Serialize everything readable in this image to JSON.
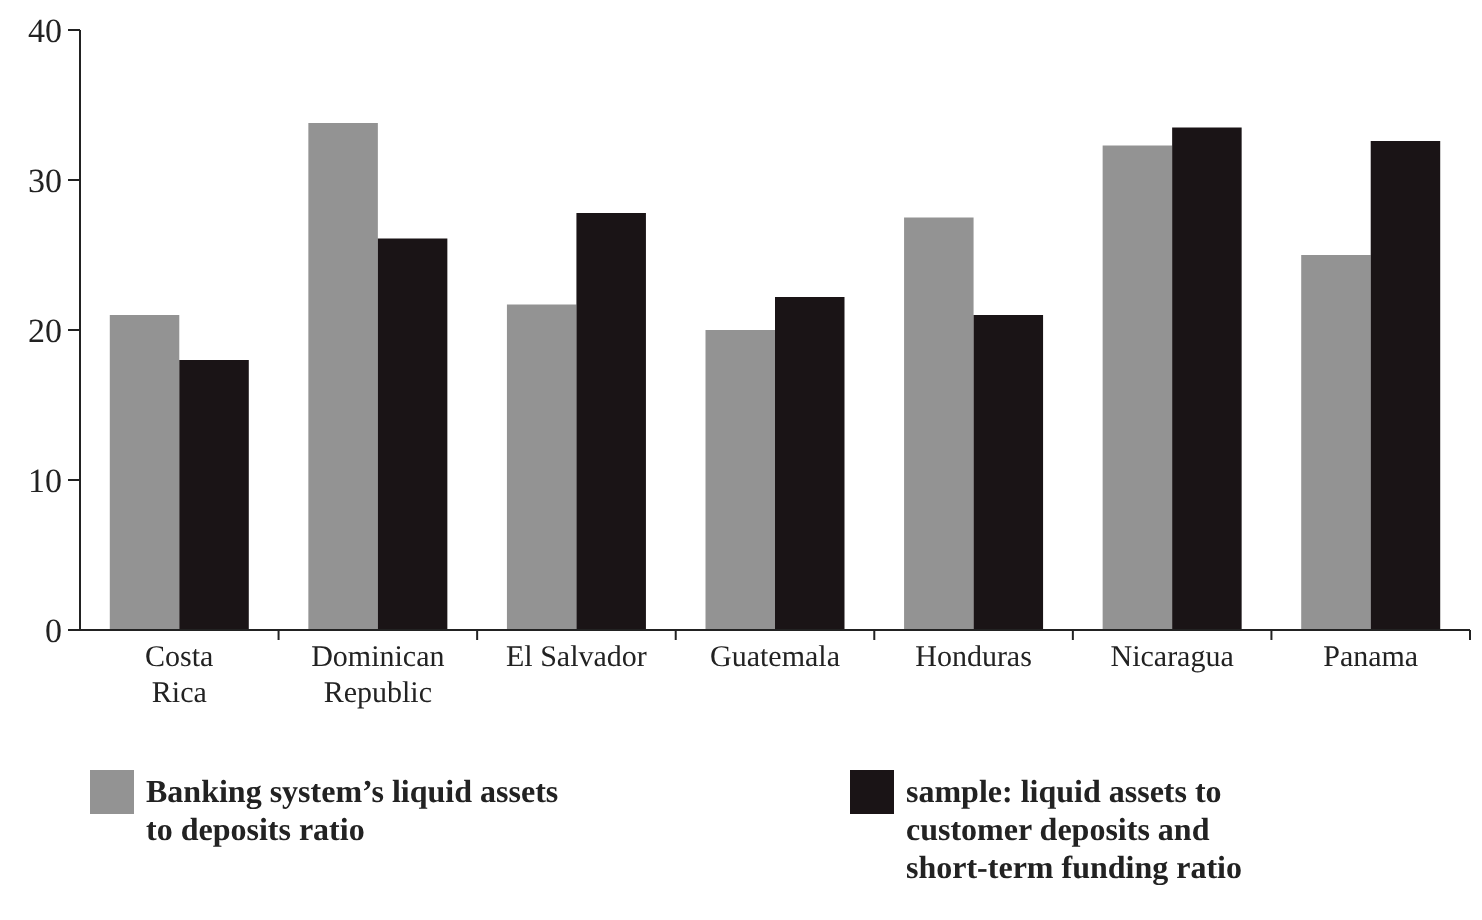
{
  "chart_data": {
    "type": "bar",
    "categories": [
      "Costa\nRica",
      "Dominican\nRepublic",
      "El Salvador",
      "Guatemala",
      "Honduras",
      "Nicaragua",
      "Panama"
    ],
    "series": [
      {
        "name": "Banking system’s liquid assets to deposits ratio",
        "color": "#939393",
        "values": [
          21,
          33.8,
          21.7,
          20,
          27.5,
          32.3,
          25
        ]
      },
      {
        "name": "sample: liquid assets to customer deposits and short-term funding ratio",
        "color": "#1a1416",
        "values": [
          18,
          26.1,
          27.8,
          22.2,
          21,
          33.5,
          32.6
        ]
      }
    ],
    "ylim": [
      0,
      40
    ],
    "yticks": [
      0,
      10,
      20,
      30,
      40
    ],
    "grid": false,
    "legend": "bottom"
  }
}
